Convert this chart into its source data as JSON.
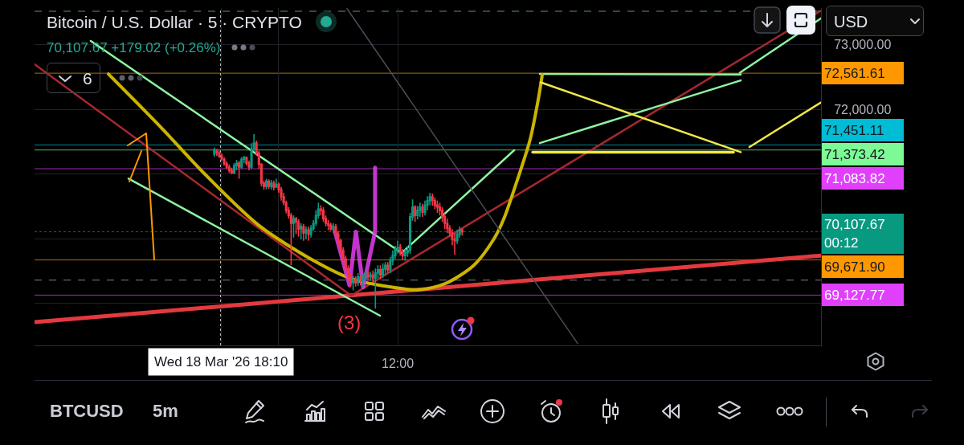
{
  "chart_data": {
    "type": "candlestick",
    "title": "Bitcoin / U.S. Dollar · 5 · CRYPTO",
    "subtitle": "70,107.67 +179.02 (+0.26%)",
    "x": [
      "2026-03-18T17:30",
      "2026-03-18T17:45",
      "2026-03-18T18:00",
      "2026-03-18T18:15",
      "2026-03-18T18:30",
      "2026-03-18T18:45",
      "2026-03-18T19:00",
      "2026-03-18T19:15",
      "2026-03-18T19:30",
      "2026-03-18T19:45",
      "2026-03-18T20:00",
      "2026-03-18T20:15",
      "2026-03-18T20:30",
      "2026-03-18T20:45",
      "2026-03-18T21:00",
      "2026-03-18T21:15",
      "2026-03-18T21:30",
      "2026-03-18T21:45",
      "2026-03-18T22:00",
      "2026-03-18T22:15",
      "2026-03-18T22:30",
      "2026-03-18T22:45",
      "2026-03-18T23:00",
      "2026-03-18T23:15",
      "2026-03-18T23:30",
      "2026-03-18T23:45",
      "2026-03-19T00:00",
      "2026-03-19T00:15",
      "2026-03-19T00:30",
      "2026-03-19T00:45",
      "2026-03-19T01:00",
      "2026-03-19T01:15",
      "2026-03-19T01:30",
      "2026-03-19T01:45",
      "2026-03-19T02:00",
      "2026-03-19T02:15",
      "2026-03-19T02:30",
      "2026-03-19T02:45",
      "2026-03-19T03:00",
      "2026-03-19T03:15",
      "2026-03-19T03:30",
      "2026-03-19T03:45",
      "2026-03-19T04:00",
      "2026-03-19T04:15",
      "2026-03-19T04:30",
      "2026-03-19T04:45",
      "2026-03-19T05:00",
      "2026-03-19T05:15",
      "2026-03-19T05:30",
      "2026-03-19T05:45",
      "2026-03-19T06:00",
      "2026-03-19T06:15",
      "2026-03-19T06:30",
      "2026-03-19T06:45",
      "2026-03-19T07:00",
      "2026-03-19T07:15",
      "2026-03-19T07:30",
      "2026-03-19T07:45",
      "2026-03-19T08:00",
      "2026-03-19T08:15",
      "2026-03-19T08:30",
      "2026-03-19T08:45",
      "2026-03-19T09:00",
      "2026-03-19T09:15",
      "2026-03-19T09:30",
      "2026-03-19T09:45",
      "2026-03-19T10:00",
      "2026-03-19T10:15",
      "2026-03-19T10:30",
      "2026-03-19T10:45",
      "2026-03-19T11:00",
      "2026-03-19T11:15",
      "2026-03-19T11:30",
      "2026-03-19T11:45",
      "2026-03-19T12:00",
      "2026-03-19T12:15",
      "2026-03-19T12:30",
      "2026-03-19T12:45",
      "2026-03-19T13:00",
      "2026-03-19T13:15",
      "2026-03-19T13:30",
      "2026-03-19T13:45",
      "2026-03-19T14:00",
      "2026-03-19T14:15",
      "2026-03-19T14:30",
      "2026-03-19T14:45",
      "2026-03-19T15:00",
      "2026-03-19T15:15",
      "2026-03-19T15:30",
      "2026-03-19T15:45",
      "2026-03-19T16:00",
      "2026-03-19T16:15",
      "2026-03-19T16:30",
      "2026-03-19T16:45",
      "2026-03-19T17:00",
      "2026-03-19T17:15",
      "2026-03-19T17:30",
      "2026-03-19T17:45",
      "2026-03-19T18:00",
      "2026-03-19T18:15",
      "2026-03-19T18:30"
    ],
    "ohlc": [
      [
        71310,
        71410,
        71270,
        71380
      ],
      [
        71380,
        71390,
        71280,
        71330
      ],
      [
        71330,
        71360,
        71250,
        71280
      ],
      [
        71280,
        71320,
        71210,
        71230
      ],
      [
        71230,
        71260,
        71130,
        71160
      ],
      [
        71160,
        71200,
        71080,
        71110
      ],
      [
        71110,
        71150,
        71020,
        71060
      ],
      [
        71060,
        71100,
        71000,
        71020
      ],
      [
        71020,
        71170,
        71000,
        71130
      ],
      [
        71130,
        71220,
        71060,
        71170
      ],
      [
        71170,
        71210,
        70930,
        71110
      ],
      [
        71110,
        71260,
        71080,
        71230
      ],
      [
        71230,
        71280,
        71170,
        71260
      ],
      [
        71260,
        71270,
        71130,
        71170
      ],
      [
        71170,
        71210,
        71060,
        71110
      ],
      [
        71110,
        71480,
        71080,
        71390
      ],
      [
        71390,
        71620,
        71360,
        71480
      ],
      [
        71480,
        71520,
        71280,
        71330
      ],
      [
        71330,
        71360,
        71080,
        71150
      ],
      [
        71150,
        71170,
        70810,
        70860
      ],
      [
        70860,
        70900,
        70760,
        70810
      ],
      [
        70810,
        70930,
        70760,
        70890
      ],
      [
        70890,
        70920,
        70770,
        70810
      ],
      [
        70810,
        70910,
        70760,
        70860
      ],
      [
        70860,
        70900,
        70750,
        70800
      ],
      [
        70800,
        70930,
        70790,
        70840
      ],
      [
        70840,
        70870,
        70710,
        70760
      ],
      [
        70760,
        70800,
        70590,
        70650
      ],
      [
        70650,
        70710,
        70520,
        70560
      ],
      [
        70560,
        70590,
        70390,
        70440
      ],
      [
        70440,
        70490,
        70310,
        70360
      ],
      [
        70360,
        70400,
        69590,
        70240
      ],
      [
        70240,
        70360,
        70020,
        70310
      ],
      [
        70310,
        70340,
        70070,
        70260
      ],
      [
        70260,
        70300,
        70030,
        70150
      ],
      [
        70150,
        70240,
        69990,
        70190
      ],
      [
        70190,
        70230,
        69970,
        70090
      ],
      [
        70090,
        70190,
        69990,
        70140
      ],
      [
        70140,
        70190,
        69970,
        70070
      ],
      [
        70070,
        70210,
        70020,
        70160
      ],
      [
        70160,
        70290,
        70120,
        70240
      ],
      [
        70240,
        70440,
        70200,
        70360
      ],
      [
        70360,
        70560,
        70310,
        70460
      ],
      [
        70460,
        70520,
        70360,
        70440
      ],
      [
        70440,
        70490,
        70260,
        70310
      ],
      [
        70310,
        70360,
        70190,
        70240
      ],
      [
        70240,
        70290,
        70130,
        70210
      ],
      [
        70210,
        70250,
        70120,
        70150
      ],
      [
        70150,
        70240,
        70090,
        70190
      ],
      [
        70190,
        70230,
        70020,
        70070
      ],
      [
        70070,
        70120,
        69900,
        69970
      ],
      [
        69970,
        70000,
        69770,
        69820
      ],
      [
        69820,
        69870,
        69640,
        69690
      ],
      [
        69690,
        69740,
        69490,
        69540
      ],
      [
        69540,
        69590,
        69350,
        69410
      ],
      [
        69410,
        69470,
        69250,
        69320
      ],
      [
        69320,
        69430,
        69200,
        69370
      ],
      [
        69370,
        69420,
        69260,
        69320
      ],
      [
        69320,
        69470,
        69270,
        69410
      ],
      [
        69410,
        69440,
        69280,
        69350
      ],
      [
        69350,
        69470,
        69250,
        69390
      ],
      [
        69390,
        69520,
        69320,
        69470
      ],
      [
        69470,
        69530,
        69350,
        69410
      ],
      [
        69410,
        69490,
        69350,
        69440
      ],
      [
        69440,
        69510,
        69320,
        69390
      ],
      [
        69390,
        69540,
        68920,
        69470
      ],
      [
        69470,
        69590,
        69390,
        69520
      ],
      [
        69520,
        69590,
        69370,
        69440
      ],
      [
        69440,
        69620,
        69390,
        69530
      ],
      [
        69530,
        69640,
        69440,
        69590
      ],
      [
        69590,
        69640,
        69470,
        69520
      ],
      [
        69520,
        69720,
        69470,
        69660
      ],
      [
        69660,
        69820,
        69590,
        69740
      ],
      [
        69740,
        69890,
        69690,
        69840
      ],
      [
        69840,
        69970,
        69770,
        69870
      ],
      [
        69870,
        69920,
        69740,
        69790
      ],
      [
        69790,
        69840,
        69670,
        69740
      ],
      [
        69740,
        69840,
        69660,
        69790
      ],
      [
        69790,
        69890,
        69720,
        69820
      ],
      [
        69820,
        70400,
        69770,
        70340
      ],
      [
        70340,
        70610,
        70280,
        70490
      ],
      [
        70490,
        70520,
        70260,
        70360
      ],
      [
        70360,
        70510,
        70300,
        70440
      ],
      [
        70440,
        70560,
        70340,
        70490
      ],
      [
        70490,
        70540,
        70340,
        70410
      ],
      [
        70410,
        70590,
        70360,
        70520
      ],
      [
        70520,
        70660,
        70440,
        70590
      ],
      [
        70590,
        70710,
        70520,
        70650
      ],
      [
        70650,
        70700,
        70510,
        70590
      ],
      [
        70590,
        70640,
        70460,
        70520
      ],
      [
        70520,
        70590,
        70400,
        70490
      ],
      [
        70490,
        70560,
        70360,
        70440
      ],
      [
        70440,
        70490,
        70260,
        70340
      ],
      [
        70340,
        70390,
        70150,
        70240
      ],
      [
        70240,
        70310,
        70090,
        70160
      ],
      [
        70160,
        70210,
        70030,
        70090
      ],
      [
        70090,
        70150,
        69900,
        69990
      ],
      [
        69990,
        70090,
        69750,
        69970
      ],
      [
        69970,
        70140,
        69920,
        70070
      ],
      [
        70070,
        70190,
        70020,
        70140
      ],
      [
        70140,
        70160,
        70050,
        70107.67
      ]
    ],
    "series": [
      {
        "type": "line",
        "color": "#e53940",
        "x": [
          "2026-03-17T23:22",
          "2026-03-21T06:42"
        ],
        "values": [
          68710,
          69740
        ]
      },
      {
        "type": "line",
        "color": "#a8282f",
        "x": [
          "2026-03-17T23:22",
          "2026-03-19T07:18"
        ],
        "values": [
          72700,
          69120
        ]
      },
      {
        "type": "line",
        "color": "#a8282f",
        "x": [
          "2026-03-19T07:18",
          "2026-03-21T06:42"
        ],
        "values": [
          69120,
          73530
        ]
      },
      {
        "type": "line",
        "color": "#8ef5a0",
        "x": [
          "2026-03-18T05:02",
          "2026-03-19T12:24"
        ],
        "values": [
          73060,
          69780
        ]
      },
      {
        "type": "line",
        "color": "#8ef5a0",
        "x": [
          "2026-03-18T08:51",
          "2026-03-19T10:13"
        ],
        "values": [
          70930,
          68810
        ]
      },
      {
        "type": "line",
        "color": "#8ef5a0",
        "x": [
          "2026-03-19T12:24",
          "2026-03-19T23:45"
        ],
        "values": [
          69780,
          71370
        ]
      },
      {
        "type": "line",
        "color": "#8ef5a0",
        "x": [
          "2026-03-20T02:20",
          "2026-03-20T22:36"
        ],
        "values": [
          72550,
          72540
        ]
      },
      {
        "type": "line",
        "color": "#8ef5a0",
        "x": [
          "2026-03-20T02:20",
          "2026-03-20T22:36"
        ],
        "values": [
          71480,
          72450
        ]
      },
      {
        "type": "line",
        "color": "#8ef5a0",
        "x": [
          "2026-03-20T22:31",
          "2026-03-21T06:42"
        ],
        "values": [
          72570,
          73410
        ]
      },
      {
        "type": "line",
        "color": "#cbb400",
        "x": [
          "2026-03-18T06:49",
          "2026-03-18T12:05",
          "2026-03-18T16:33",
          "2026-03-18T21:58",
          "2026-03-19T03:19",
          "2026-03-19T07:22",
          "2026-03-19T11:26",
          "2026-03-19T14:11",
          "2026-03-19T16:51",
          "2026-03-19T19:41",
          "2026-03-19T21:43",
          "2026-03-19T22:41",
          "2026-03-19T23:59",
          "2026-03-20T01:22",
          "2026-03-20T02:11",
          "2026-03-20T02:35"
        ],
        "values": [
          72550,
          71730,
          71000,
          70210,
          69680,
          69380,
          69250,
          69210,
          69310,
          69590,
          70000,
          70300,
          70870,
          71540,
          72160,
          72540
        ]
      },
      {
        "type": "line",
        "color": "#f2e64b",
        "x": [
          "2026-03-20T01:37",
          "2026-03-20T21:52"
        ],
        "values": [
          71340,
          71340
        ]
      },
      {
        "type": "line",
        "color": "#f2e64b",
        "x": [
          "2026-03-20T02:25",
          "2026-03-20T22:36"
        ],
        "values": [
          72420,
          71340
        ]
      },
      {
        "type": "line",
        "color": "#f2e64b",
        "x": [
          "2026-03-20T23:29",
          "2026-03-21T06:42"
        ],
        "values": [
          71420,
          72110
        ]
      },
      {
        "type": "line",
        "color": "#4a4d57",
        "x": [
          "2026-03-19T06:53",
          "2026-03-20T06:09"
        ],
        "values": [
          73560,
          68380
        ]
      },
      {
        "type": "line",
        "color": "#e63ef0",
        "x": [
          "2026-03-19T05:40",
          "2026-03-19T07:08",
          "2026-03-19T07:47",
          "2026-03-19T08:31",
          "2026-03-19T09:43",
          "2026-03-19T09:43"
        ],
        "values": [
          70110,
          69280,
          70110,
          69250,
          70110,
          71100
        ]
      }
    ],
    "xlim": [
      "2026-03-17T23:22",
      "2026-03-21T06:42"
    ],
    "xticks": [
      {
        "value": "2026-03-18T18:10",
        "label": "Wed 18 Mar '26 18:10"
      },
      {
        "value": "2026-03-19T00:00",
        "label": null
      },
      {
        "value": "2026-03-19T12:00",
        "label": "12:00"
      }
    ],
    "ylim": [
      68350,
      73570
    ],
    "yticks": [
      {
        "value": 73000,
        "label": "73,000.00"
      },
      {
        "value": 72000,
        "label": "72,000.00"
      },
      {
        "value": 71000,
        "label": null
      },
      {
        "value": 70000,
        "label": null
      },
      {
        "value": 69000,
        "label": null
      }
    ],
    "grid": true,
    "ref_lines": [
      {
        "axis": "y",
        "value": 73520,
        "color": "#80cbc4",
        "line_style": "dashed"
      },
      {
        "axis": "y",
        "value": 72561.61,
        "label": "72,561.61",
        "color": "#ff9800"
      },
      {
        "axis": "y",
        "value": 71451.11,
        "label": "71,451.11",
        "color": "#00bcd4"
      },
      {
        "axis": "y",
        "value": 71373.42,
        "label": "71,373.42",
        "color": "#7dfa95"
      },
      {
        "axis": "y",
        "value": 71083.82,
        "label": "71,083.82",
        "color": "#e040fb"
      },
      {
        "axis": "y",
        "value": 70107.67,
        "label": "70,107.67\n00:12",
        "color": "#089981",
        "line_style": "dotted"
      },
      {
        "axis": "y",
        "value": 69671.9,
        "label": "69,671.90",
        "color": "#ff9800"
      },
      {
        "axis": "y",
        "value": 69360,
        "color": "#b2b5be",
        "line_style": "dashed"
      },
      {
        "axis": "y",
        "value": 69127.77,
        "label": "69,127.77",
        "color": "#e040fb"
      },
      {
        "axis": "x",
        "value": "2026-03-18T18:10",
        "color": "#b2b5be",
        "line_style": "dotted"
      }
    ],
    "annotations": [
      "USD",
      "6",
      "(3)",
      "BTCUSD",
      "5m"
    ]
  }
}
